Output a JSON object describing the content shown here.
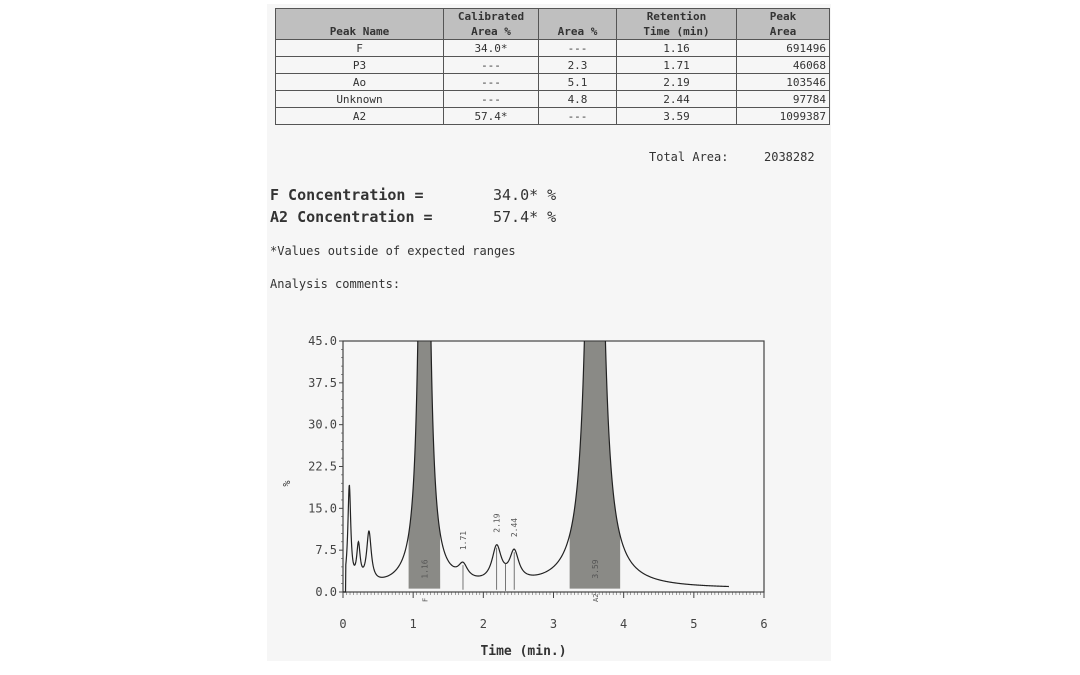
{
  "peak_table": {
    "headers": [
      "Peak Name",
      "Calibrated\nArea %",
      "Area %",
      "Retention\nTime (min)",
      "Peak\nArea"
    ],
    "rows": [
      [
        "F",
        "34.0*",
        "---",
        "1.16",
        "691496"
      ],
      [
        "P3",
        "---",
        "2.3",
        "1.71",
        "46068"
      ],
      [
        "Ao",
        "---",
        "5.1",
        "2.19",
        "103546"
      ],
      [
        "Unknown",
        "---",
        "4.8",
        "2.44",
        "97784"
      ],
      [
        "A2",
        "57.4*",
        "---",
        "3.59",
        "1099387"
      ]
    ]
  },
  "total_area": {
    "label": "Total Area:",
    "value": "2038282"
  },
  "concentrations": [
    {
      "label": "F Concentration  =",
      "value": "34.0* %"
    },
    {
      "label": "A2 Concentration  =",
      "value": "57.4* %"
    }
  ],
  "footnote": "*Values outside of expected ranges",
  "comments_label": "Analysis comments:",
  "chart_data": {
    "type": "line",
    "xlabel": "Time (min.)",
    "ylabel": "%",
    "xlim": [
      0,
      6
    ],
    "ylim": [
      0,
      45
    ],
    "x_ticks": [
      "0",
      "1",
      "2",
      "3",
      "4",
      "5",
      "6"
    ],
    "y_ticks": [
      "0.0",
      "7.5",
      "15.0",
      "22.5",
      "30.0",
      "37.5",
      "45.0"
    ],
    "peaks": [
      {
        "retention": 1.16,
        "height": 200,
        "width": 0.05,
        "label": "F",
        "time_label": "1.16",
        "shaded": true
      },
      {
        "retention": 1.71,
        "height": 2.5,
        "width": 0.08,
        "label": "",
        "time_label": "1.71",
        "shaded": false
      },
      {
        "retention": 2.19,
        "height": 6.2,
        "width": 0.08,
        "label": "",
        "time_label": "2.19",
        "shaded": false
      },
      {
        "retention": 2.44,
        "height": 5.2,
        "width": 0.08,
        "label": "",
        "time_label": "2.44",
        "shaded": false
      },
      {
        "retention": 3.59,
        "height": 200,
        "width": 0.08,
        "label": "A2",
        "time_label": "3.59",
        "shaded": true
      }
    ],
    "injection_peaks": [
      {
        "retention": 0.09,
        "height": 17.5,
        "width": 0.025
      },
      {
        "retention": 0.22,
        "height": 6.5,
        "width": 0.03
      },
      {
        "retention": 0.37,
        "height": 9.0,
        "width": 0.04
      }
    ],
    "colors": {
      "line": "#222222",
      "shade": "#8a8a86",
      "axis": "#444444"
    }
  }
}
